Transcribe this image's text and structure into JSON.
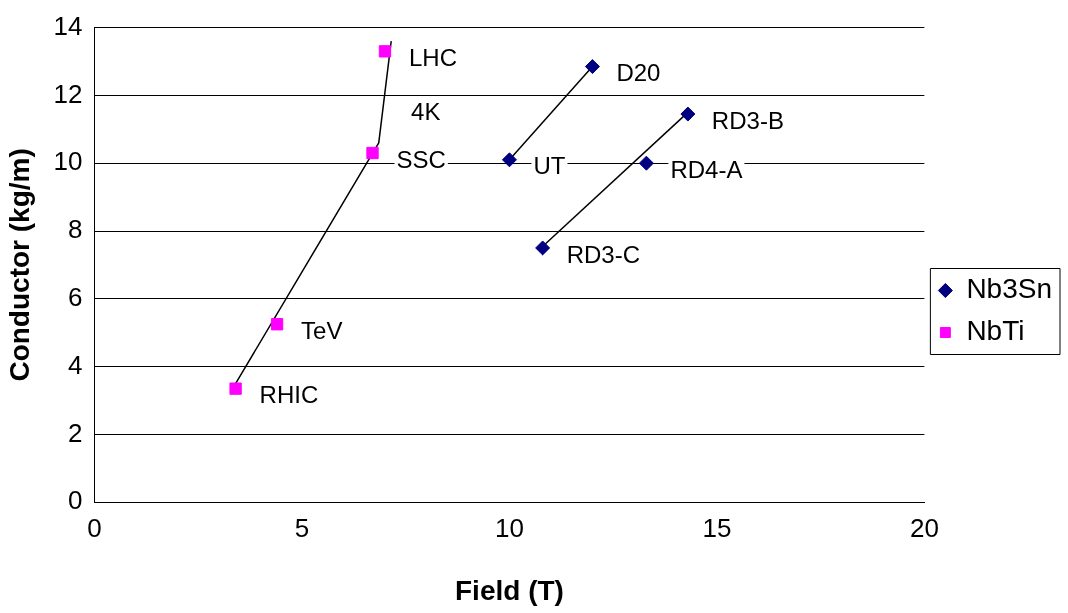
{
  "chart_data": {
    "type": "scatter",
    "xlabel": "Field (T)",
    "ylabel": "Conductor (kg/m)",
    "xlim": [
      0,
      20
    ],
    "xticks": [
      0,
      5,
      10,
      15,
      20
    ],
    "ylim": [
      0,
      14
    ],
    "yticks": [
      0,
      2,
      4,
      6,
      8,
      10,
      12,
      14
    ],
    "grid": "y",
    "legend": "right",
    "series": [
      {
        "name": "Nb3Sn",
        "color": "#000080",
        "marker": "diamond",
        "x": [
          10,
          12,
          10.8,
          13.3,
          14.3
        ],
        "values": [
          10.1,
          12.85,
          7.5,
          10,
          11.45
        ]
      },
      {
        "name": "NbTi",
        "color": "#ff00ff",
        "marker": "square",
        "x": [
          3.4,
          4.4,
          6.7,
          7
        ],
        "values": [
          3.35,
          5.25,
          10.3,
          13.3
        ]
      },
      {
        "type": "line",
        "color": "#000000",
        "marker": "none",
        "x": [
          3.4,
          6.85,
          7.15
        ],
        "values": [
          3.5,
          10.6,
          13.6
        ]
      },
      {
        "type": "line",
        "color": "#000000",
        "marker": "none",
        "x": [
          10,
          12
        ],
        "values": [
          10.1,
          12.85
        ]
      },
      {
        "type": "line",
        "color": "#000000",
        "marker": "none",
        "x": [
          10.85,
          14.3
        ],
        "values": [
          7.6,
          11.5
        ]
      }
    ],
    "annotations": [
      {
        "text": "LHC",
        "x": 7,
        "y": 13.3
      },
      {
        "text": "4K",
        "x": 7.05,
        "y": 11.7
      },
      {
        "text": "SSC",
        "x": 6.7,
        "y": 10.3
      },
      {
        "text": "TeV",
        "x": 4.4,
        "y": 5.25
      },
      {
        "text": "RHIC",
        "x": 3.4,
        "y": 3.35
      },
      {
        "text": "D20",
        "x": 12,
        "y": 12.85
      },
      {
        "text": "UT",
        "x": 10,
        "y": 10.1
      },
      {
        "text": "RD3-B",
        "x": 14.3,
        "y": 11.45
      },
      {
        "text": "RD4-A",
        "x": 13.3,
        "y": 10
      },
      {
        "text": "RD3-C",
        "x": 10.8,
        "y": 7.5
      }
    ]
  }
}
